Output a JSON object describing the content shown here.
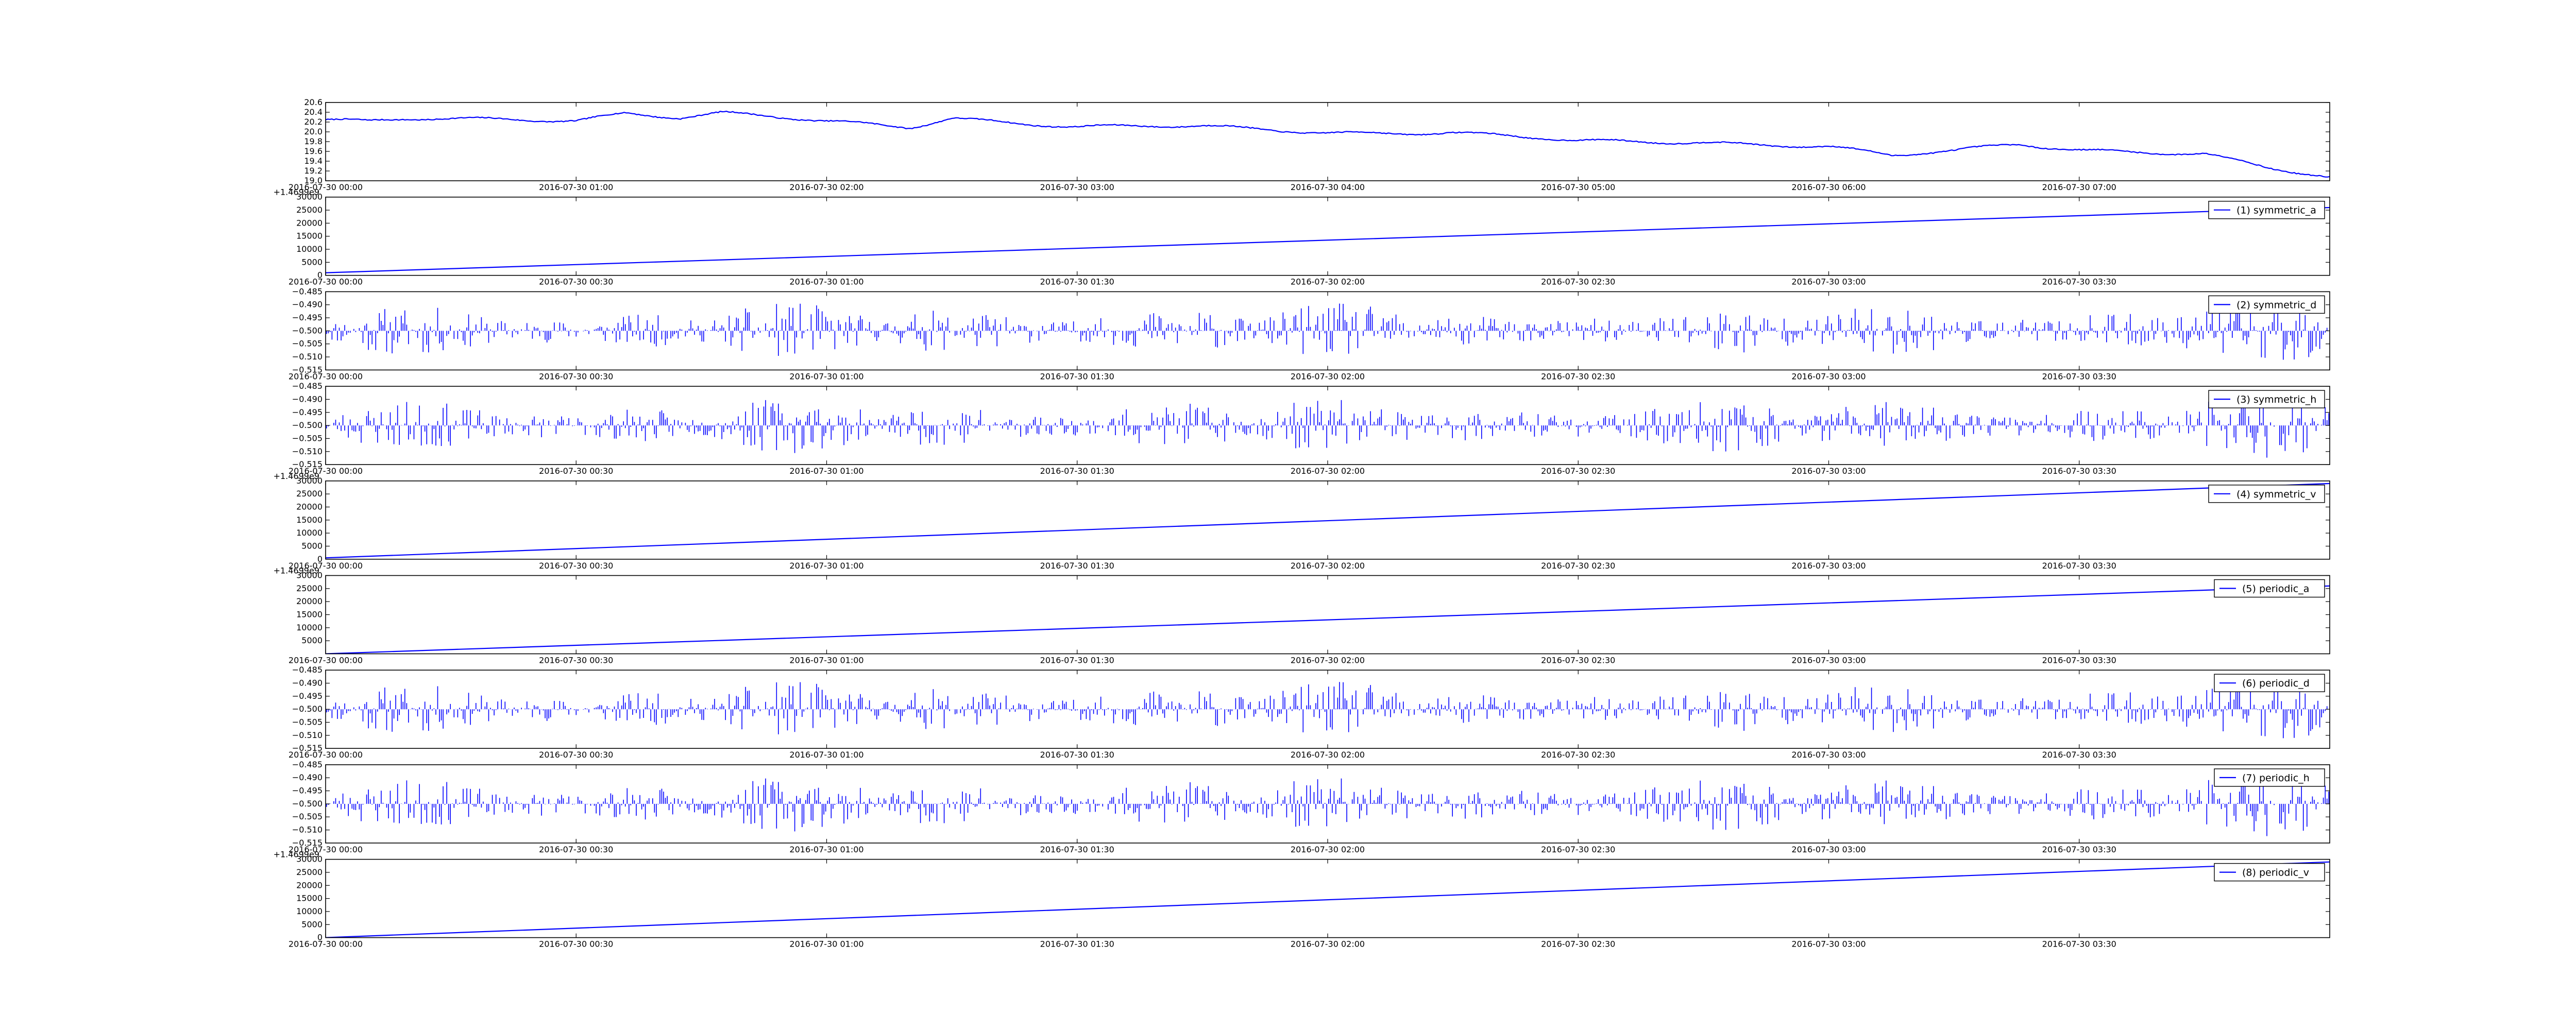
{
  "colors": {
    "line": "#0000ff",
    "axes": "#000000",
    "background": "#ffffff"
  },
  "chart_data": [
    {
      "type": "line",
      "series": [
        {
          "name": "",
          "kind": "temperature"
        }
      ],
      "title": "",
      "xlabel": "",
      "ylabel": "",
      "x_range": [
        "2016-07-30 00:00",
        "2016-07-30 08:00"
      ],
      "ylim": [
        19.0,
        20.6
      ],
      "yticks": [
        "19.0",
        "19.2",
        "19.4",
        "19.6",
        "19.8",
        "20.0",
        "20.2",
        "20.4",
        "20.6"
      ],
      "xticks": [
        "2016-07-30 00:00",
        "2016-07-30 01:00",
        "2016-07-30 02:00",
        "2016-07-30 03:00",
        "2016-07-30 04:00",
        "2016-07-30 05:00",
        "2016-07-30 06:00",
        "2016-07-30 07:00"
      ],
      "y_offset_label": "",
      "legend": null,
      "keypoints": [
        [
          "2016-07-30 00:00",
          20.25
        ],
        [
          "2016-07-30 00:10",
          20.2
        ],
        [
          "2016-07-30 00:20",
          20.25
        ],
        [
          "2016-07-30 00:40",
          20.25
        ],
        [
          "2016-07-30 01:00",
          20.25
        ],
        [
          "2016-07-30 01:12",
          20.4
        ],
        [
          "2016-07-30 01:25",
          20.3
        ],
        [
          "2016-07-30 01:35",
          20.38
        ],
        [
          "2016-07-30 02:00",
          20.2
        ],
        [
          "2016-07-30 02:20",
          20.1
        ],
        [
          "2016-07-30 02:30",
          20.3
        ],
        [
          "2016-07-30 03:00",
          20.1
        ],
        [
          "2016-07-30 03:30",
          20.1
        ],
        [
          "2016-07-30 04:00",
          20.0
        ],
        [
          "2016-07-30 04:30",
          19.98
        ],
        [
          "2016-07-30 05:00",
          19.8
        ],
        [
          "2016-07-30 05:30",
          19.8
        ],
        [
          "2016-07-30 06:00",
          19.7
        ],
        [
          "2016-07-30 06:15",
          19.5
        ],
        [
          "2016-07-30 06:30",
          19.6
        ],
        [
          "2016-07-30 06:45",
          19.75
        ],
        [
          "2016-07-30 07:00",
          19.65
        ],
        [
          "2016-07-30 07:30",
          19.55
        ],
        [
          "2016-07-30 07:45",
          19.25
        ],
        [
          "2016-07-30 08:00",
          19.05
        ]
      ]
    },
    {
      "type": "line",
      "series": [
        {
          "name": "(1) symmetric_a",
          "kind": "ramp"
        }
      ],
      "x_range": [
        "2016-07-30 00:00",
        "2016-07-30 04:00"
      ],
      "ylim": [
        0,
        30000
      ],
      "yticks": [
        "0",
        "5000",
        "10000",
        "15000",
        "20000",
        "25000",
        "30000"
      ],
      "xticks": [
        "2016-07-30 00:00",
        "2016-07-30 00:30",
        "2016-07-30 01:00",
        "2016-07-30 01:30",
        "2016-07-30 02:00",
        "2016-07-30 02:30",
        "2016-07-30 03:00",
        "2016-07-30 03:30"
      ],
      "y_offset_label": "+1.4699e9",
      "legend": "right",
      "line": [
        [
          "2016-07-30 00:00",
          1000
        ],
        [
          "2016-07-30 04:00",
          26000
        ]
      ]
    },
    {
      "type": "bar",
      "series": [
        {
          "name": "(2) symmetric_d",
          "kind": "detail",
          "seed": 11
        }
      ],
      "x_range": [
        "2016-07-30 00:00",
        "2016-07-30 04:00"
      ],
      "ylim": [
        -0.515,
        -0.485
      ],
      "baseline": -0.5,
      "yticks": [
        "−0.515",
        "−0.510",
        "−0.505",
        "−0.500",
        "−0.495",
        "−0.490",
        "−0.485"
      ],
      "xticks": [
        "2016-07-30 00:00",
        "2016-07-30 00:30",
        "2016-07-30 01:00",
        "2016-07-30 01:30",
        "2016-07-30 02:00",
        "2016-07-30 02:30",
        "2016-07-30 03:00",
        "2016-07-30 03:30"
      ],
      "y_offset_label": "",
      "legend": "right"
    },
    {
      "type": "bar",
      "series": [
        {
          "name": "(3) symmetric_h",
          "kind": "detail",
          "seed": 23
        }
      ],
      "x_range": [
        "2016-07-30 00:00",
        "2016-07-30 04:00"
      ],
      "ylim": [
        -0.515,
        -0.485
      ],
      "baseline": -0.5,
      "yticks": [
        "−0.515",
        "−0.510",
        "−0.505",
        "−0.500",
        "−0.495",
        "−0.490",
        "−0.485"
      ],
      "xticks": [
        "2016-07-30 00:00",
        "2016-07-30 00:30",
        "2016-07-30 01:00",
        "2016-07-30 01:30",
        "2016-07-30 02:00",
        "2016-07-30 02:30",
        "2016-07-30 03:00",
        "2016-07-30 03:30"
      ],
      "y_offset_label": "",
      "legend": "right"
    },
    {
      "type": "line",
      "series": [
        {
          "name": "(4) symmetric_v",
          "kind": "ramp"
        }
      ],
      "x_range": [
        "2016-07-30 00:00",
        "2016-07-30 04:00"
      ],
      "ylim": [
        0,
        30000
      ],
      "yticks": [
        "0",
        "5000",
        "10000",
        "15000",
        "20000",
        "25000",
        "30000"
      ],
      "xticks": [
        "2016-07-30 00:00",
        "2016-07-30 00:30",
        "2016-07-30 01:00",
        "2016-07-30 01:30",
        "2016-07-30 02:00",
        "2016-07-30 02:30",
        "2016-07-30 03:00",
        "2016-07-30 03:30"
      ],
      "y_offset_label": "+1.4699e9",
      "legend": "right",
      "line": [
        [
          "2016-07-30 00:00",
          500
        ],
        [
          "2016-07-30 04:00",
          29000
        ]
      ]
    },
    {
      "type": "line",
      "series": [
        {
          "name": "(5) periodic_a",
          "kind": "ramp"
        }
      ],
      "x_range": [
        "2016-07-30 00:00",
        "2016-07-30 04:00"
      ],
      "ylim": [
        0,
        30000
      ],
      "yticks": [
        "5000",
        "10000",
        "15000",
        "20000",
        "25000",
        "30000"
      ],
      "xticks": [
        "2016-07-30 00:00",
        "2016-07-30 00:30",
        "2016-07-30 01:00",
        "2016-07-30 01:30",
        "2016-07-30 02:00",
        "2016-07-30 02:30",
        "2016-07-30 03:00",
        "2016-07-30 03:30"
      ],
      "y_offset_label": "+1.4699e9",
      "legend": "right",
      "line": [
        [
          "2016-07-30 00:00",
          0
        ],
        [
          "2016-07-30 04:00",
          26000
        ]
      ]
    },
    {
      "type": "bar",
      "series": [
        {
          "name": "(6) periodic_d",
          "kind": "detail",
          "seed": 11
        }
      ],
      "x_range": [
        "2016-07-30 00:00",
        "2016-07-30 04:00"
      ],
      "ylim": [
        -0.515,
        -0.485
      ],
      "baseline": -0.5,
      "yticks": [
        "−0.515",
        "−0.510",
        "−0.505",
        "−0.500",
        "−0.495",
        "−0.490",
        "−0.485"
      ],
      "xticks": [
        "2016-07-30 00:00",
        "2016-07-30 00:30",
        "2016-07-30 01:00",
        "2016-07-30 01:30",
        "2016-07-30 02:00",
        "2016-07-30 02:30",
        "2016-07-30 03:00",
        "2016-07-30 03:30"
      ],
      "y_offset_label": "",
      "legend": "right"
    },
    {
      "type": "bar",
      "series": [
        {
          "name": "(7) periodic_h",
          "kind": "detail",
          "seed": 23
        }
      ],
      "x_range": [
        "2016-07-30 00:00",
        "2016-07-30 04:00"
      ],
      "ylim": [
        -0.515,
        -0.485
      ],
      "baseline": -0.5,
      "yticks": [
        "−0.515",
        "−0.510",
        "−0.505",
        "−0.500",
        "−0.495",
        "−0.490",
        "−0.485"
      ],
      "xticks": [
        "2016-07-30 00:00",
        "2016-07-30 00:30",
        "2016-07-30 01:00",
        "2016-07-30 01:30",
        "2016-07-30 02:00",
        "2016-07-30 02:30",
        "2016-07-30 03:00",
        "2016-07-30 03:30"
      ],
      "y_offset_label": "",
      "legend": "right"
    },
    {
      "type": "line",
      "series": [
        {
          "name": "(8) periodic_v",
          "kind": "ramp"
        }
      ],
      "x_range": [
        "2016-07-30 00:00",
        "2016-07-30 04:00"
      ],
      "ylim": [
        0,
        30000
      ],
      "yticks": [
        "0",
        "5000",
        "10000",
        "15000",
        "20000",
        "25000",
        "30000"
      ],
      "xticks": [
        "2016-07-30 00:00",
        "2016-07-30 00:30",
        "2016-07-30 01:00",
        "2016-07-30 01:30",
        "2016-07-30 02:00",
        "2016-07-30 02:30",
        "2016-07-30 03:00",
        "2016-07-30 03:30"
      ],
      "y_offset_label": "+1.4699e9",
      "legend": "right",
      "line": [
        [
          "2016-07-30 00:00",
          0
        ],
        [
          "2016-07-30 04:00",
          29000
        ]
      ]
    }
  ]
}
